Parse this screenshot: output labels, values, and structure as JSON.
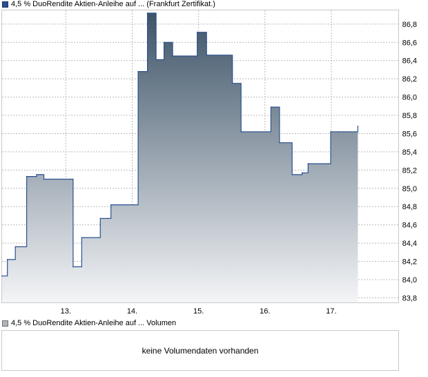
{
  "legend": {
    "price_label": "4,5 % DuoRendite Aktien-Anleihe auf ... (Frankfurt Zertifikat.)",
    "volume_label": "4,5 % DuoRendite Aktien-Anleihe auf ... Volumen"
  },
  "volume_panel": {
    "message": "keine Volumendaten vorhanden"
  },
  "colors": {
    "line": "#2a4f8f",
    "fill_top": "#3e5468",
    "fill_bottom": "#f4f5f7",
    "grid": "#b8b8b8"
  },
  "chart_data": {
    "type": "area",
    "title": "",
    "xlabel": "",
    "ylabel": "",
    "ylim": [
      83.75,
      86.95
    ],
    "y_ticks": [
      83.8,
      84.0,
      84.2,
      84.4,
      84.6,
      84.8,
      85.0,
      85.2,
      85.4,
      85.6,
      85.8,
      86.0,
      86.2,
      86.4,
      86.6,
      86.8
    ],
    "y_tick_labels": [
      "83,8",
      "84,0",
      "84,2",
      "84,4",
      "84,6",
      "84,8",
      "85,0",
      "85,2",
      "85,4",
      "85,6",
      "85,8",
      "86,0",
      "86,2",
      "86,4",
      "86,6",
      "86,8"
    ],
    "x_ticks": [
      13,
      14,
      15,
      16,
      17
    ],
    "x_tick_labels": [
      "13.",
      "14.",
      "15.",
      "16.",
      "17."
    ],
    "xlim": [
      12.04,
      18.02
    ],
    "grid": true,
    "step": true,
    "series": [
      {
        "name": "4,5 % DuoRendite Aktien-Anleihe auf ... (Frankfurt Zertifikat.)",
        "x": [
          12.04,
          12.12,
          12.24,
          12.41,
          12.56,
          12.67,
          13.11,
          13.24,
          13.52,
          13.68,
          14.09,
          14.23,
          14.36,
          14.48,
          14.61,
          14.98,
          15.12,
          15.51,
          15.64,
          16.09,
          16.22,
          16.41,
          16.56,
          16.65,
          16.99,
          17.11,
          17.4
        ],
        "y": [
          84.04,
          84.22,
          84.36,
          85.13,
          85.15,
          85.1,
          84.14,
          84.46,
          84.67,
          84.82,
          86.28,
          86.92,
          86.41,
          86.6,
          86.45,
          86.71,
          86.46,
          86.15,
          85.62,
          85.89,
          85.5,
          85.15,
          85.17,
          85.27,
          85.62,
          85.62,
          85.68
        ]
      }
    ]
  }
}
